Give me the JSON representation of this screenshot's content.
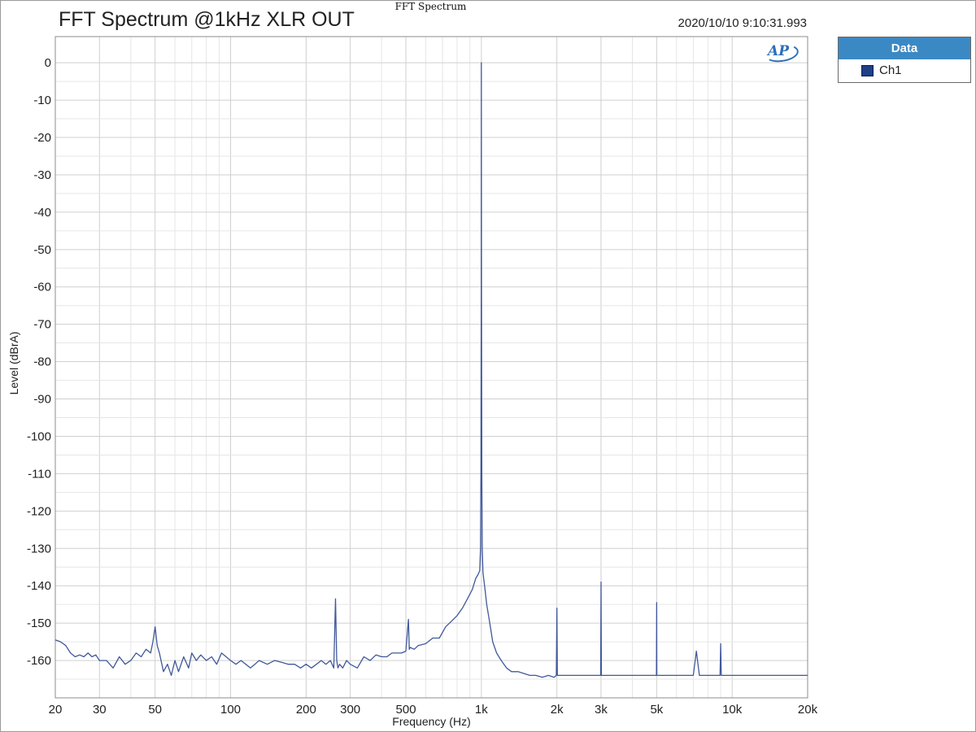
{
  "window": {
    "caption": "FFT Spectrum",
    "title": "FFT Spectrum @1kHz XLR OUT",
    "timestamp": "2020/10/10 9:10:31.993"
  },
  "legend": {
    "header": "Data",
    "items": [
      {
        "label": "Ch1",
        "color": "#1f3f86"
      }
    ]
  },
  "logo": {
    "text": "AP"
  },
  "colors": {
    "trace": "#41589a",
    "grid_major": "#cfcfcf",
    "grid_minor": "#e6e6e6",
    "plot_border": "#8c8c8c"
  },
  "chart_data": {
    "type": "line",
    "title": "FFT Spectrum @1kHz XLR OUT",
    "xlabel": "Frequency (Hz)",
    "ylabel": "Level (dBrA)",
    "xscale": "log",
    "xlim": [
      20,
      20000
    ],
    "ylim": [
      -170,
      7
    ],
    "grid": true,
    "legend_position": "outside-right",
    "x_ticks": [
      {
        "value": 20,
        "label": "20"
      },
      {
        "value": 30,
        "label": "30"
      },
      {
        "value": 50,
        "label": "50"
      },
      {
        "value": 100,
        "label": "100"
      },
      {
        "value": 200,
        "label": "200"
      },
      {
        "value": 300,
        "label": "300"
      },
      {
        "value": 500,
        "label": "500"
      },
      {
        "value": 1000,
        "label": "1k"
      },
      {
        "value": 2000,
        "label": "2k"
      },
      {
        "value": 3000,
        "label": "3k"
      },
      {
        "value": 5000,
        "label": "5k"
      },
      {
        "value": 10000,
        "label": "10k"
      },
      {
        "value": 20000,
        "label": "20k"
      }
    ],
    "y_ticks": [
      {
        "value": 0,
        "label": "0"
      },
      {
        "value": -10,
        "label": "-10"
      },
      {
        "value": -20,
        "label": "-20"
      },
      {
        "value": -30,
        "label": "-30"
      },
      {
        "value": -40,
        "label": "-40"
      },
      {
        "value": -50,
        "label": "-50"
      },
      {
        "value": -60,
        "label": "-60"
      },
      {
        "value": -70,
        "label": "-70"
      },
      {
        "value": -80,
        "label": "-80"
      },
      {
        "value": -90,
        "label": "-90"
      },
      {
        "value": -100,
        "label": "-100"
      },
      {
        "value": -110,
        "label": "-110"
      },
      {
        "value": -120,
        "label": "-120"
      },
      {
        "value": -130,
        "label": "-130"
      },
      {
        "value": -140,
        "label": "-140"
      },
      {
        "value": -150,
        "label": "-150"
      },
      {
        "value": -160,
        "label": "-160"
      }
    ],
    "series": [
      {
        "name": "Ch1",
        "color": "#41589a",
        "x": [
          20,
          21,
          22,
          23,
          24,
          25,
          26,
          27,
          28,
          29,
          30,
          32,
          34,
          36,
          38,
          40,
          42,
          44,
          46,
          48,
          49,
          50,
          51,
          52,
          54,
          56,
          58,
          60,
          62,
          65,
          68,
          70,
          73,
          76,
          80,
          84,
          88,
          92,
          96,
          100,
          105,
          110,
          115,
          120,
          125,
          130,
          140,
          150,
          160,
          170,
          180,
          190,
          200,
          210,
          220,
          230,
          240,
          250,
          258,
          262,
          265,
          268,
          272,
          280,
          290,
          300,
          320,
          340,
          360,
          380,
          400,
          420,
          440,
          460,
          480,
          500,
          512,
          516,
          520,
          540,
          560,
          600,
          640,
          680,
          720,
          760,
          800,
          840,
          880,
          920,
          950,
          970,
          985,
          992,
          996,
          999,
          1000,
          1001,
          1004,
          1008,
          1015,
          1030,
          1050,
          1080,
          1110,
          1150,
          1200,
          1260,
          1320,
          1400,
          1480,
          1560,
          1650,
          1750,
          1850,
          1950,
          1990,
          2000,
          2010,
          2100,
          2300,
          2500,
          2700,
          2900,
          2990,
          3000,
          3010,
          3200,
          3500,
          3800,
          4100,
          4400,
          4700,
          4990,
          5000,
          5010,
          5400,
          5800,
          6200,
          6600,
          7000,
          7200,
          7400,
          7600,
          8000,
          8500,
          8950,
          9000,
          9050,
          9500,
          10000,
          11000,
          12000,
          13000,
          14000,
          15000,
          16000,
          17000,
          18000,
          19000,
          20000
        ],
        "y": [
          -154.5,
          -155,
          -156,
          -158,
          -159,
          -158.5,
          -159,
          -158,
          -159,
          -158.5,
          -160,
          -160,
          -162,
          -159,
          -161,
          -160,
          -158,
          -159,
          -157,
          -158,
          -155,
          -151,
          -156,
          -158,
          -163,
          -161,
          -164,
          -160,
          -163,
          -159,
          -162,
          -158,
          -160,
          -158.5,
          -160,
          -159,
          -161,
          -158,
          -159,
          -160,
          -161,
          -160,
          -161,
          -162,
          -161,
          -160,
          -161,
          -160,
          -160.5,
          -161,
          -161,
          -162,
          -161,
          -162,
          -161,
          -160,
          -161,
          -160,
          -162,
          -143.5,
          -160,
          -162,
          -161,
          -162,
          -160,
          -161,
          -162,
          -159,
          -160,
          -158.5,
          -159,
          -159,
          -158,
          -158,
          -158,
          -157.5,
          -149,
          -157,
          -156.5,
          -157,
          -156,
          -155.5,
          -154,
          -154,
          -151,
          -149.5,
          -148,
          -146,
          -143.5,
          -141,
          -138,
          -137,
          -136,
          -130,
          -110,
          -60,
          0,
          -60,
          -110,
          -130,
          -136.5,
          -140,
          -145,
          -150,
          -155,
          -158,
          -160,
          -162,
          -163,
          -163,
          -163.5,
          -164,
          -164,
          -164.5,
          -164,
          -164.5,
          -164,
          -146,
          -164,
          -164,
          -164,
          -164,
          -164,
          -164,
          -164,
          -139,
          -164,
          -164,
          -164,
          -164,
          -164,
          -164,
          -164,
          -164,
          -144.5,
          -164,
          -164,
          -164,
          -164,
          -164,
          -164,
          -157.5,
          -164,
          -164,
          -164,
          -164,
          -164,
          -155.5,
          -164,
          -164,
          -164,
          -164,
          -164,
          -164,
          -164,
          -164,
          -164,
          -164,
          -164,
          -164,
          -164
        ]
      }
    ]
  }
}
